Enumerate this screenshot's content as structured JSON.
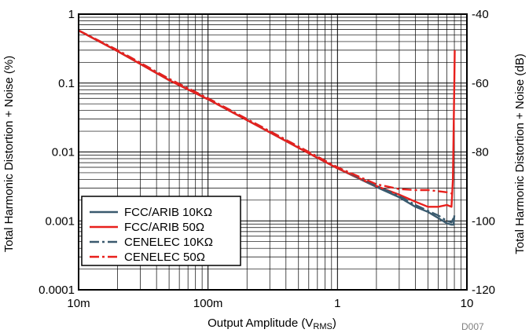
{
  "chart_data": {
    "type": "line",
    "title": "",
    "xlabel": "Output Amplitude (V",
    "xlabel_sub": "RMS",
    "xlabel_end": ")",
    "ylabel": "Total Harmonic Distortion + Noise (%)",
    "ylabel_right": "Total Harmonic Distortion + Noise (dB)",
    "x_scale": "log",
    "y_scale": "log",
    "xlim": [
      0.01,
      10
    ],
    "ylim": [
      0.0001,
      1
    ],
    "ylim_right_db": [
      -120,
      -40
    ],
    "x_ticks": [
      "10m",
      "100m",
      "1",
      "10"
    ],
    "y_ticks": [
      "1",
      "0.1",
      "0.01",
      "0.001",
      "0.0001"
    ],
    "y_ticks_right": [
      "-40",
      "-60",
      "-80",
      "-100",
      "-120"
    ],
    "grid": true,
    "legend_position": "lower-left",
    "figure_code": "D007",
    "series": [
      {
        "name": "FCC/ARIB 10KΩ",
        "color": "#3a5a6e",
        "dash": "solid",
        "x": [
          0.01,
          0.02,
          0.05,
          0.1,
          0.2,
          0.5,
          1,
          2,
          3,
          4,
          5,
          6,
          7,
          7.6,
          7.9,
          8.0
        ],
        "y": [
          0.58,
          0.29,
          0.11,
          0.058,
          0.029,
          0.0115,
          0.0058,
          0.0031,
          0.0022,
          0.0016,
          0.00135,
          0.0011,
          0.00092,
          0.00088,
          0.00088,
          0.0012
        ]
      },
      {
        "name": "FCC/ARIB 50Ω",
        "color": "#e8201c",
        "dash": "solid",
        "x": [
          0.01,
          0.02,
          0.05,
          0.1,
          0.2,
          0.5,
          1,
          2,
          3,
          4,
          5,
          6,
          7,
          7.6,
          7.8,
          7.9,
          8.0,
          8.05
        ],
        "y": [
          0.58,
          0.29,
          0.11,
          0.058,
          0.029,
          0.0115,
          0.0058,
          0.0032,
          0.0024,
          0.0019,
          0.0016,
          0.0016,
          0.0017,
          0.0016,
          0.004,
          0.02,
          0.1,
          0.3
        ]
      },
      {
        "name": "CENELEC 10KΩ",
        "color": "#3a5a6e",
        "dash": "dashdot",
        "x": [
          0.01,
          0.02,
          0.05,
          0.1,
          0.2,
          0.5,
          1,
          2,
          3,
          4,
          5,
          6,
          7,
          7.6,
          7.9
        ],
        "y": [
          0.58,
          0.3,
          0.115,
          0.06,
          0.03,
          0.012,
          0.006,
          0.0032,
          0.0023,
          0.0017,
          0.0014,
          0.0012,
          0.001,
          0.00095,
          0.0011
        ]
      },
      {
        "name": "CENELEC 50Ω",
        "color": "#e8201c",
        "dash": "dashdot",
        "x": [
          0.01,
          0.02,
          0.05,
          0.1,
          0.2,
          0.5,
          1,
          2,
          3,
          4,
          5,
          6,
          7,
          7.6,
          7.85
        ],
        "y": [
          0.58,
          0.3,
          0.115,
          0.06,
          0.03,
          0.012,
          0.006,
          0.0034,
          0.0029,
          0.0028,
          0.0028,
          0.0027,
          0.0026,
          0.0025,
          0.0026
        ]
      }
    ]
  }
}
